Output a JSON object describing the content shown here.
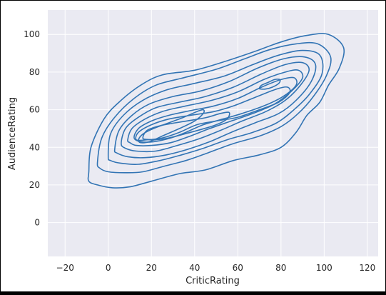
{
  "chart_data": {
    "type": "kde-contour",
    "xlabel": "CriticRating",
    "ylabel": "AudienceRating",
    "xlim": [
      -28,
      125
    ],
    "ylim": [
      -18,
      113
    ],
    "xticks": [
      -20,
      0,
      20,
      40,
      60,
      80,
      100,
      120
    ],
    "yticks": [
      0,
      20,
      40,
      60,
      80,
      100
    ],
    "grid": true,
    "legend": "none",
    "colors": {
      "plot_background": "#eaeaf2",
      "grid": "#ffffff",
      "contour": "#3274b4",
      "tick_text": "#262626"
    },
    "contours": [
      {
        "level": 1,
        "points": [
          [
            -9,
            27
          ],
          [
            -8,
            40
          ],
          [
            -2,
            55
          ],
          [
            5,
            64
          ],
          [
            15,
            73
          ],
          [
            25,
            78.5
          ],
          [
            40,
            81
          ],
          [
            55,
            86
          ],
          [
            68,
            91
          ],
          [
            80,
            96
          ],
          [
            92,
            99.5
          ],
          [
            102,
            100
          ],
          [
            109,
            93
          ],
          [
            107,
            82
          ],
          [
            102,
            73
          ],
          [
            98,
            64
          ],
          [
            92,
            57
          ],
          [
            87,
            48
          ],
          [
            80,
            40
          ],
          [
            70,
            36
          ],
          [
            58,
            33
          ],
          [
            45,
            28
          ],
          [
            33,
            26
          ],
          [
            20,
            22
          ],
          [
            10,
            19
          ],
          [
            2,
            18.5
          ],
          [
            -5,
            20
          ],
          [
            -9,
            22
          ]
        ]
      },
      {
        "level": 2,
        "points": [
          [
            -5,
            32
          ],
          [
            -3,
            45
          ],
          [
            3,
            56
          ],
          [
            12,
            66
          ],
          [
            22,
            73
          ],
          [
            35,
            77
          ],
          [
            50,
            81.5
          ],
          [
            63,
            87
          ],
          [
            75,
            92
          ],
          [
            87,
            95
          ],
          [
            97,
            95
          ],
          [
            103,
            88
          ],
          [
            101,
            78
          ],
          [
            95,
            67
          ],
          [
            88,
            58
          ],
          [
            80,
            51
          ],
          [
            70,
            46
          ],
          [
            58,
            42
          ],
          [
            46,
            37
          ],
          [
            36,
            33
          ],
          [
            26,
            30
          ],
          [
            16,
            27
          ],
          [
            8,
            26.5
          ],
          [
            0,
            27
          ],
          [
            -4,
            29
          ]
        ]
      },
      {
        "level": 3,
        "points": [
          [
            0,
            35
          ],
          [
            1,
            47
          ],
          [
            7,
            57
          ],
          [
            16,
            65
          ],
          [
            27,
            70.5
          ],
          [
            40,
            74
          ],
          [
            54,
            78
          ],
          [
            67,
            84
          ],
          [
            79,
            89
          ],
          [
            90,
            91.5
          ],
          [
            98,
            89
          ],
          [
            99,
            79
          ],
          [
            93,
            68
          ],
          [
            86,
            60
          ],
          [
            78,
            53
          ],
          [
            67,
            48
          ],
          [
            55,
            44
          ],
          [
            44,
            39.5
          ],
          [
            34,
            36
          ],
          [
            24,
            33
          ],
          [
            14,
            31
          ],
          [
            6,
            31.5
          ],
          [
            1,
            33
          ]
        ]
      },
      {
        "level": 4,
        "points": [
          [
            3,
            39
          ],
          [
            5,
            49
          ],
          [
            11,
            57
          ],
          [
            19,
            63
          ],
          [
            30,
            67
          ],
          [
            43,
            70
          ],
          [
            56,
            75
          ],
          [
            69,
            82
          ],
          [
            81,
            87
          ],
          [
            91,
            88
          ],
          [
            96,
            84
          ],
          [
            94,
            75
          ],
          [
            87,
            65
          ],
          [
            79,
            58
          ],
          [
            68,
            53
          ],
          [
            57,
            48
          ],
          [
            47,
            43
          ],
          [
            37,
            39
          ],
          [
            27,
            36
          ],
          [
            17,
            34.5
          ],
          [
            9,
            35
          ],
          [
            4,
            37
          ]
        ]
      },
      {
        "level": 5,
        "points": [
          [
            6,
            42
          ],
          [
            8,
            50
          ],
          [
            14,
            56
          ],
          [
            22,
            61
          ],
          [
            33,
            64
          ],
          [
            45,
            67
          ],
          [
            58,
            72
          ],
          [
            71,
            79
          ],
          [
            82,
            84
          ],
          [
            90,
            85
          ],
          [
            93,
            81
          ],
          [
            89,
            73
          ],
          [
            82,
            65
          ],
          [
            73,
            59
          ],
          [
            62,
            54
          ],
          [
            52,
            49
          ],
          [
            42,
            44.5
          ],
          [
            32,
            41
          ],
          [
            22,
            38
          ],
          [
            13,
            38
          ],
          [
            8,
            39.5
          ]
        ]
      },
      {
        "level": 6,
        "points": [
          [
            9,
            44
          ],
          [
            11,
            50
          ],
          [
            17,
            55
          ],
          [
            25,
            59
          ],
          [
            36,
            62
          ],
          [
            48,
            65
          ],
          [
            60,
            69.5
          ],
          [
            72,
            76
          ],
          [
            82,
            80
          ],
          [
            88,
            81
          ],
          [
            90,
            77
          ],
          [
            85,
            70
          ],
          [
            77,
            63
          ],
          [
            67,
            58
          ],
          [
            57,
            54
          ],
          [
            47,
            50
          ],
          [
            38,
            46
          ],
          [
            29,
            42.5
          ],
          [
            20,
            41
          ],
          [
            13,
            41
          ],
          [
            10,
            42.5
          ]
        ]
      },
      {
        "level": 7,
        "points": [
          [
            12,
            45
          ],
          [
            14,
            50
          ],
          [
            20,
            54
          ],
          [
            28,
            57
          ],
          [
            38,
            59.5
          ],
          [
            49,
            62
          ],
          [
            60,
            66
          ],
          [
            71,
            72
          ],
          [
            80,
            76
          ],
          [
            86,
            77
          ],
          [
            87,
            73
          ],
          [
            81,
            67
          ],
          [
            72,
            62
          ],
          [
            62,
            58
          ],
          [
            53,
            55
          ],
          [
            44,
            52
          ],
          [
            36,
            48
          ],
          [
            29,
            45
          ],
          [
            21,
            43
          ],
          [
            15,
            43
          ]
        ]
      },
      {
        "level": 8,
        "points": [
          [
            13,
            44
          ],
          [
            14,
            48
          ],
          [
            20,
            52
          ],
          [
            28,
            55
          ],
          [
            38,
            57
          ],
          [
            49,
            59
          ],
          [
            58,
            62
          ],
          [
            69,
            67
          ],
          [
            78,
            71
          ],
          [
            83,
            72
          ],
          [
            84,
            69
          ],
          [
            79,
            64
          ],
          [
            70,
            60
          ],
          [
            60,
            56
          ],
          [
            50,
            54
          ],
          [
            41,
            52
          ],
          [
            33,
            48
          ],
          [
            25,
            45
          ],
          [
            18,
            44
          ]
        ]
      },
      {
        "level": 9,
        "points": [
          [
            16,
            45
          ],
          [
            18,
            49
          ],
          [
            24,
            51.5
          ],
          [
            31,
            53
          ],
          [
            39,
            54.5
          ],
          [
            46,
            56
          ],
          [
            52,
            58
          ],
          [
            56,
            58.5
          ],
          [
            55,
            55
          ],
          [
            50,
            52
          ],
          [
            43,
            49.5
          ],
          [
            35,
            47
          ],
          [
            28,
            45
          ],
          [
            22,
            44
          ],
          [
            18,
            44.2
          ]
        ]
      },
      {
        "level": 10,
        "points": [
          [
            14,
            44
          ],
          [
            16,
            47
          ],
          [
            21,
            50
          ],
          [
            28,
            53
          ],
          [
            35,
            56
          ],
          [
            41,
            59
          ],
          [
            44,
            60
          ],
          [
            44,
            58
          ],
          [
            40,
            54
          ],
          [
            33,
            50
          ],
          [
            26,
            46.5
          ],
          [
            19,
            43
          ],
          [
            15,
            42.5
          ]
        ]
      },
      {
        "level": 11,
        "points": [
          [
            70,
            71.5
          ],
          [
            71,
            73
          ],
          [
            74,
            74.5
          ],
          [
            77,
            76
          ],
          [
            79.5,
            76
          ],
          [
            79,
            74
          ],
          [
            76,
            72
          ],
          [
            73,
            71
          ],
          [
            70.5,
            71
          ]
        ]
      }
    ]
  }
}
